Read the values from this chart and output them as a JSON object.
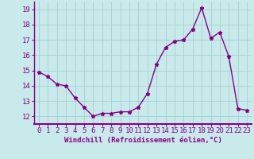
{
  "x": [
    0,
    1,
    2,
    3,
    4,
    5,
    6,
    7,
    8,
    9,
    10,
    11,
    12,
    13,
    14,
    15,
    16,
    17,
    18,
    19,
    20,
    21,
    22,
    23
  ],
  "y": [
    14.9,
    14.6,
    14.1,
    14.0,
    13.2,
    12.6,
    12.0,
    12.2,
    12.2,
    12.3,
    12.3,
    12.6,
    13.5,
    15.4,
    16.5,
    16.9,
    17.0,
    17.7,
    19.1,
    17.1,
    17.5,
    15.9,
    12.5,
    12.4
  ],
  "line_color": "#880088",
  "marker": "*",
  "marker_size": 3.5,
  "bg_color": "#c8eaea",
  "grid_color": "#aad4d4",
  "xlabel": "Windchill (Refroidissement éolien,°C)",
  "xlim": [
    -0.5,
    23.5
  ],
  "ylim": [
    11.5,
    19.5
  ],
  "yticks": [
    12,
    13,
    14,
    15,
    16,
    17,
    18,
    19
  ],
  "xticks": [
    0,
    1,
    2,
    3,
    4,
    5,
    6,
    7,
    8,
    9,
    10,
    11,
    12,
    13,
    14,
    15,
    16,
    17,
    18,
    19,
    20,
    21,
    22,
    23
  ],
  "xlabel_fontsize": 6.5,
  "tick_fontsize": 6.5,
  "line_width": 1.0
}
